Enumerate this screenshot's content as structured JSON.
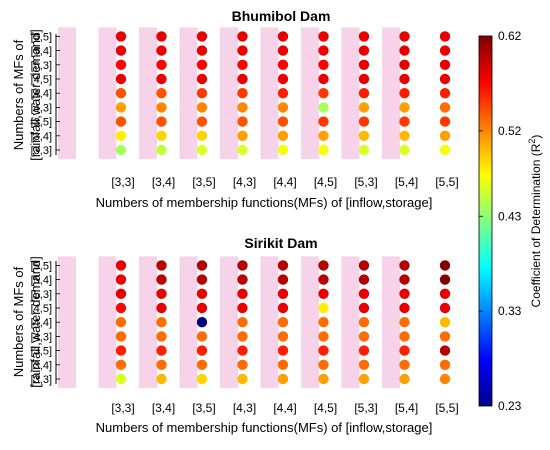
{
  "chart_data": [
    {
      "type": "scatter",
      "title": "Bhumibol Dam",
      "xlabel": "Numbers of membership functions(MFs) of [inflow,storage]",
      "ylabel": [
        "Numbers of MFs of",
        "[rainfall,water demand]"
      ],
      "x_categories": [
        "[3,3]",
        "[3,4]",
        "[3,5]",
        "[4,3]",
        "[4,4]",
        "[4,5]",
        "[5,3]",
        "[5,4]",
        "[5,5]"
      ],
      "y_categories": [
        "[3,3]",
        "[3,4]",
        "[3,5]",
        "[4,3]",
        "[4,4]",
        "[4,5]",
        "[5,3]",
        "[5,4]",
        "[5,5]"
      ],
      "values": [
        [
          0.44,
          0.48,
          0.54,
          0.51,
          0.54,
          0.58,
          0.57,
          0.58,
          0.58
        ],
        [
          0.45,
          0.49,
          0.54,
          0.52,
          0.54,
          0.58,
          0.57,
          0.58,
          0.58
        ],
        [
          0.46,
          0.49,
          0.54,
          0.52,
          0.55,
          0.58,
          0.57,
          0.58,
          0.58
        ],
        [
          0.46,
          0.51,
          0.54,
          0.52,
          0.55,
          0.58,
          0.57,
          0.58,
          0.58
        ],
        [
          0.47,
          0.51,
          0.54,
          0.52,
          0.56,
          0.58,
          0.57,
          0.58,
          0.58
        ],
        [
          0.47,
          0.51,
          0.55,
          0.44,
          0.55,
          0.58,
          0.57,
          0.58,
          0.58
        ],
        [
          0.46,
          0.5,
          0.55,
          0.51,
          0.56,
          0.58,
          0.58,
          0.58,
          0.58
        ],
        [
          0.46,
          0.5,
          0.55,
          0.51,
          0.56,
          0.58,
          0.58,
          0.58,
          0.58
        ],
        [
          0.47,
          0.51,
          0.55,
          0.53,
          0.56,
          0.58,
          0.58,
          0.58,
          0.58
        ]
      ]
    },
    {
      "type": "scatter",
      "title": "Sirikit Dam",
      "xlabel": "Numbers of membership functions(MFs) of [inflow,storage]",
      "ylabel": [
        "Numbers of MFs of",
        "[rainfall,water demand]"
      ],
      "x_categories": [
        "[3,3]",
        "[3,4]",
        "[3,5]",
        "[4,3]",
        "[4,4]",
        "[4,5]",
        "[5,3]",
        "[5,4]",
        "[5,5]"
      ],
      "y_categories": [
        "[3,3]",
        "[3,4]",
        "[3,5]",
        "[4,3]",
        "[4,4]",
        "[4,5]",
        "[5,3]",
        "[5,4]",
        "[5,5]"
      ],
      "values": [
        [
          0.46,
          0.53,
          0.56,
          0.53,
          0.53,
          0.57,
          0.58,
          0.58,
          0.58
        ],
        [
          0.5,
          0.53,
          0.56,
          0.53,
          0.53,
          0.58,
          0.58,
          0.6,
          0.6
        ],
        [
          0.49,
          0.53,
          0.56,
          0.53,
          0.23,
          0.58,
          0.58,
          0.6,
          0.6
        ],
        [
          0.5,
          0.53,
          0.56,
          0.53,
          0.53,
          0.58,
          0.58,
          0.6,
          0.6
        ],
        [
          0.51,
          0.53,
          0.56,
          0.53,
          0.53,
          0.58,
          0.58,
          0.6,
          0.6
        ],
        [
          0.51,
          0.53,
          0.56,
          0.53,
          0.53,
          0.48,
          0.58,
          0.6,
          0.6
        ],
        [
          0.51,
          0.53,
          0.56,
          0.53,
          0.53,
          0.58,
          0.58,
          0.6,
          0.6
        ],
        [
          0.51,
          0.53,
          0.56,
          0.53,
          0.53,
          0.58,
          0.58,
          0.6,
          0.6
        ],
        [
          0.52,
          0.53,
          0.6,
          0.53,
          0.5,
          0.58,
          0.58,
          0.62,
          0.62
        ]
      ]
    }
  ],
  "colorbar": {
    "label": "Coefficient of Determination (R",
    "label_sup": "2",
    "label_close": ")",
    "ticks": [
      "0.62",
      "0.52",
      "0.43",
      "0.33",
      "0.23"
    ],
    "min": 0.23,
    "max": 0.62,
    "colormap": "jet"
  }
}
